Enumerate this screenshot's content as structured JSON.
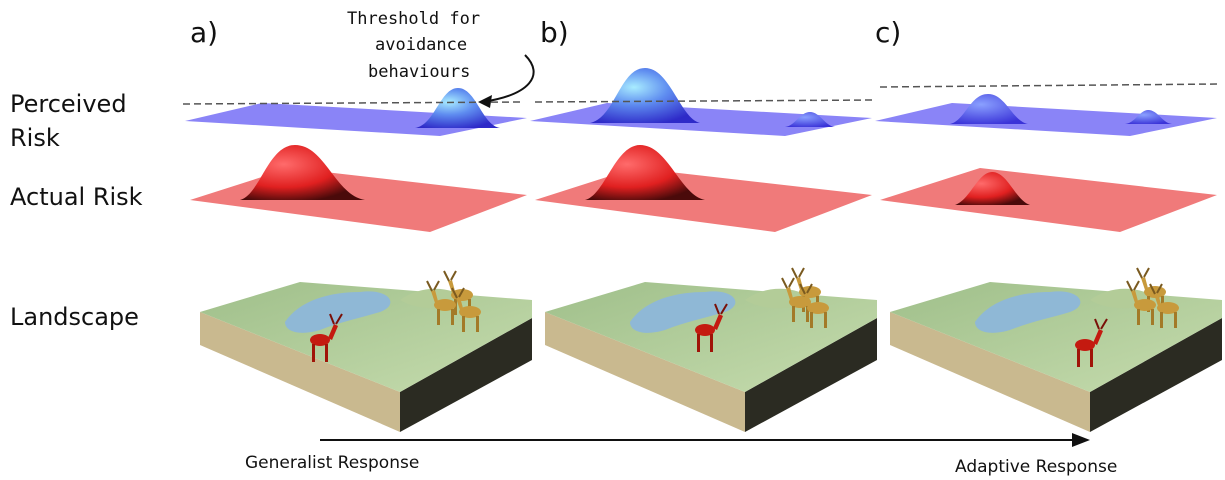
{
  "panels": [
    "a)",
    "b)",
    "c)"
  ],
  "rows": [
    {
      "lines": [
        "Perceived",
        "Risk"
      ]
    },
    {
      "lines": [
        "Actual Risk"
      ]
    },
    {
      "lines": [
        "Landscape"
      ]
    }
  ],
  "annotation": {
    "lines": [
      "Threshold for",
      "avoidance",
      "behaviours"
    ]
  },
  "axis": {
    "start": "Generalist Response",
    "end": "Adaptive Response"
  }
}
